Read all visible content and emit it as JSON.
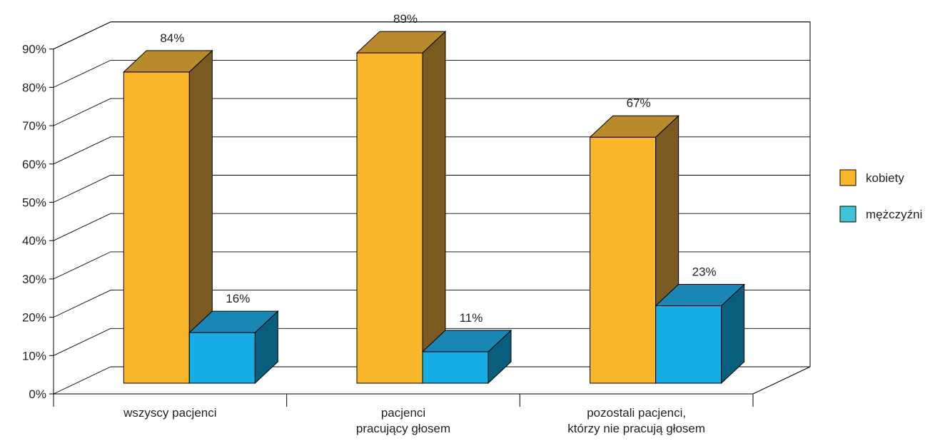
{
  "chart_data": {
    "type": "bar",
    "categories": [
      [
        "wszyscy pacjenci"
      ],
      [
        "pacjenci",
        "pracujący głosem"
      ],
      [
        "pozostali pacjenci,",
        "którzy nie pracują głosem"
      ]
    ],
    "series": [
      {
        "name": "kobiety",
        "values": [
          84,
          89,
          67
        ],
        "value_labels": [
          "84%",
          "89%",
          "67%"
        ],
        "colors": {
          "front": "#F9B62A",
          "top": "#B88A2C",
          "side": "#7A5A20"
        }
      },
      {
        "name": "mężczyźni",
        "values": [
          16,
          11,
          23
        ],
        "value_labels": [
          "16%",
          "11%",
          "23%"
        ],
        "colors": {
          "front": "#16AEE4",
          "top": "#1887B5",
          "side": "#085E7C"
        }
      }
    ],
    "y_ticks": [
      "0%",
      "10%",
      "20%",
      "30%",
      "40%",
      "50%",
      "60%",
      "70%",
      "80%",
      "90%"
    ],
    "ylim": [
      0,
      90
    ],
    "y_step": 10,
    "grid": true,
    "three_d": true,
    "legend_position": "right",
    "legend_swatch_colors": [
      "#F9B62A",
      "#3CC4D9"
    ],
    "title": "",
    "xlabel": "",
    "ylabel": ""
  }
}
